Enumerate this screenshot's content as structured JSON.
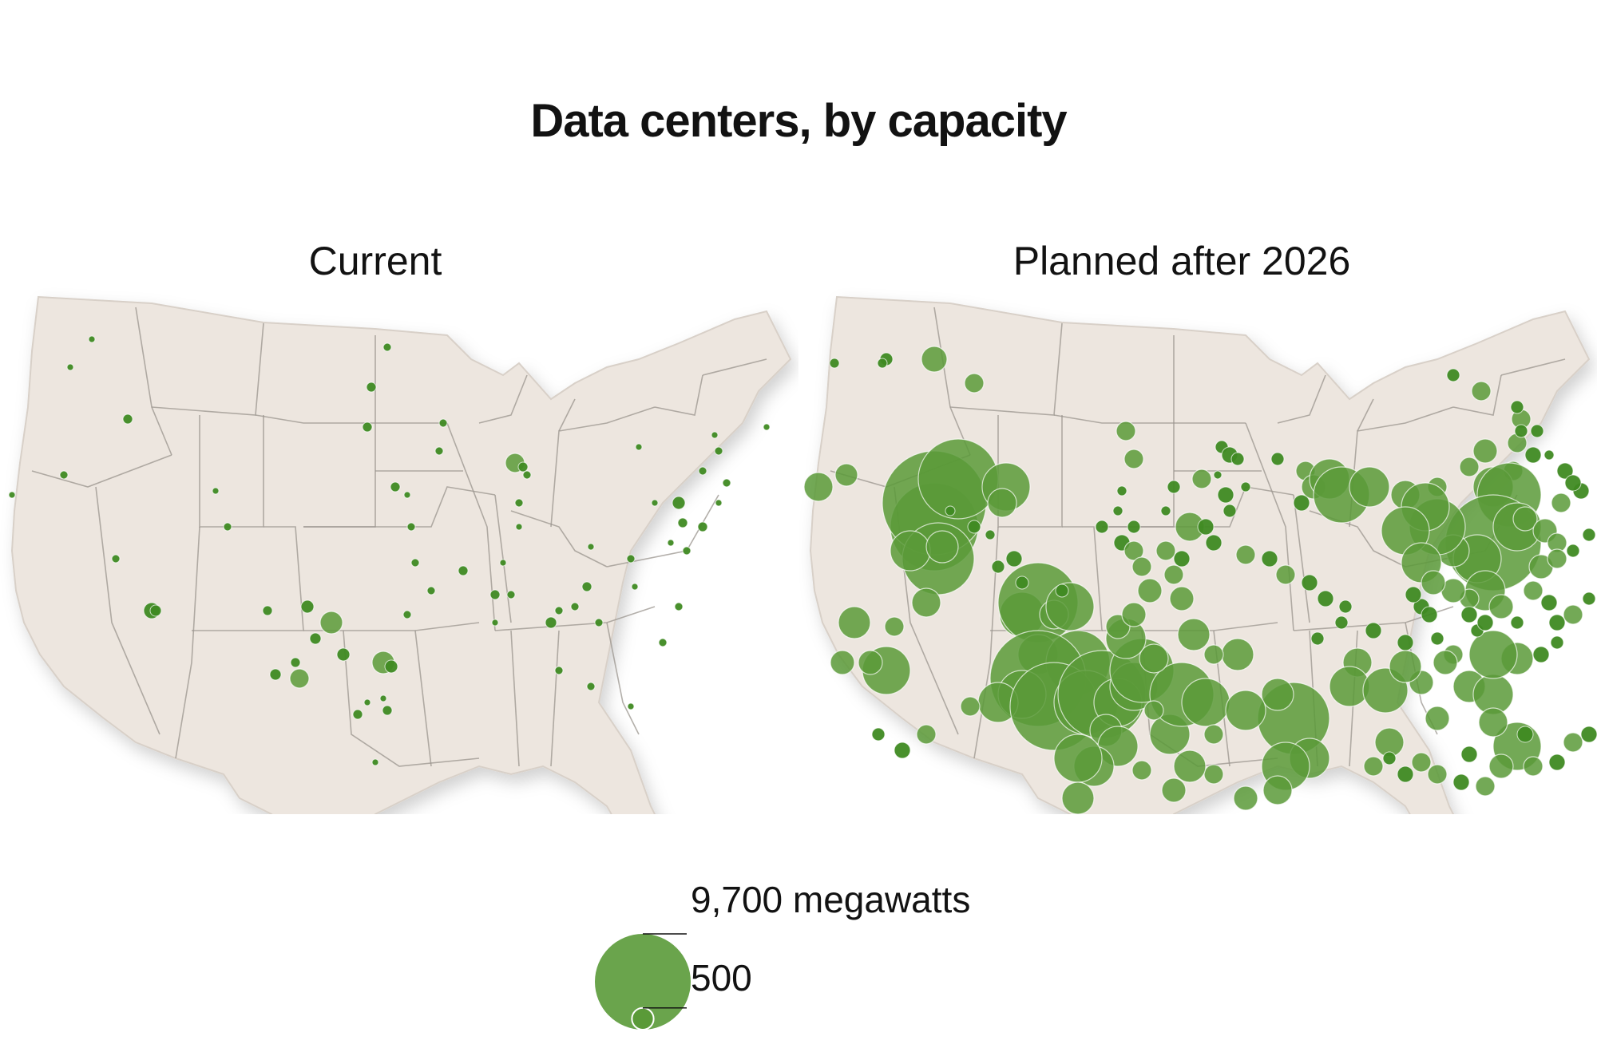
{
  "title": "Data centers, by capacity",
  "maps": {
    "current": {
      "label": "Current"
    },
    "planned": {
      "label": "Planned after 2026"
    }
  },
  "legend": {
    "max_label": "9,700 megawatts",
    "min_label": "500",
    "max_mw": 9700,
    "min_mw": 500
  },
  "colors": {
    "land": "#ede6df",
    "border": "#9a948e",
    "bubble": "#5a9a38",
    "bubble_dark": "#3f8a22",
    "bubble_stroke": "#ffffff"
  }
}
